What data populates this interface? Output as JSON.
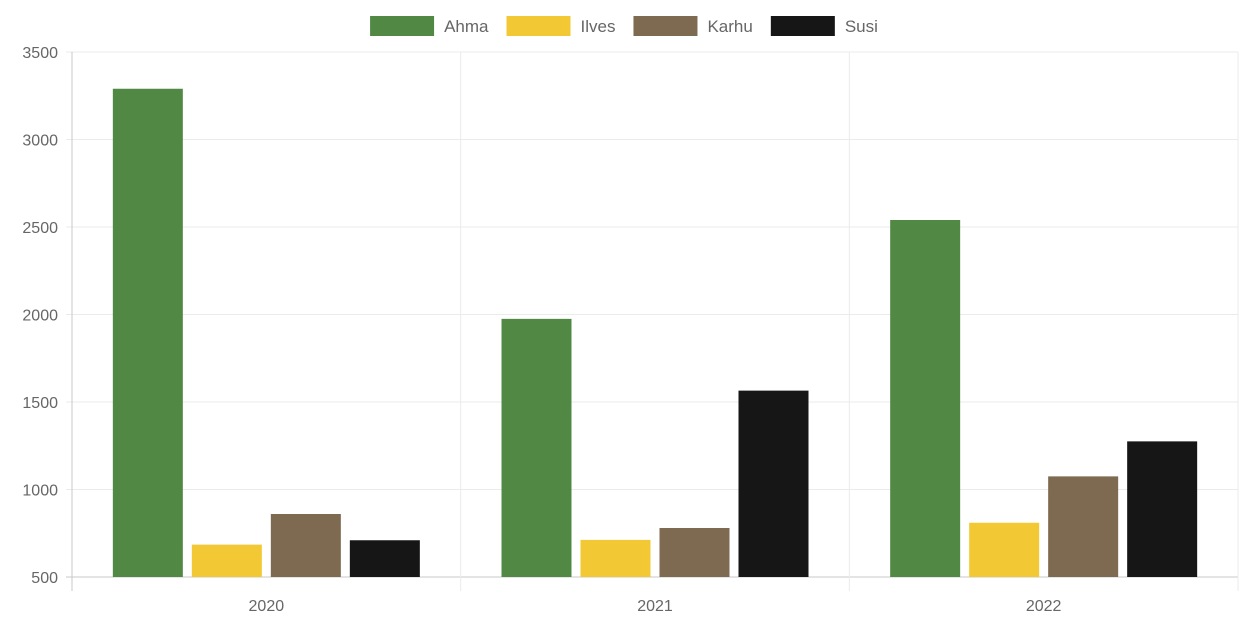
{
  "chart_data": {
    "type": "bar",
    "title": "",
    "xlabel": "",
    "ylabel": "",
    "categories": [
      "2020",
      "2021",
      "2022"
    ],
    "series": [
      {
        "name": "Ahma",
        "color": "#518944",
        "values": [
          3290,
          1975,
          2540
        ]
      },
      {
        "name": "Ilves",
        "color": "#f2c934",
        "values": [
          685,
          712,
          810
        ]
      },
      {
        "name": "Karhu",
        "color": "#7d6a50",
        "values": [
          860,
          780,
          1075
        ]
      },
      {
        "name": "Susi",
        "color": "#161616",
        "values": [
          710,
          1565,
          1275
        ]
      }
    ],
    "ylim": [
      500,
      3500
    ],
    "yticks": [
      "500",
      "1000",
      "1500",
      "2000",
      "2500",
      "3000",
      "3500"
    ],
    "grid": true,
    "legend_position": "top-center"
  }
}
